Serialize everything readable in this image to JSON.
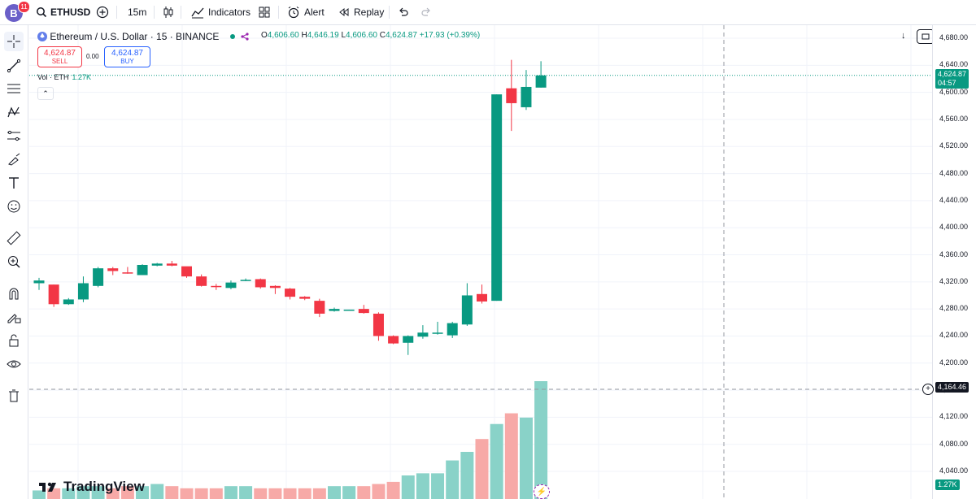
{
  "topbar": {
    "avatar_letter": "B",
    "notification_count": "11",
    "symbol": "ETHUSD",
    "interval": "15m",
    "indicators_label": "Indicators",
    "alert_label": "Alert",
    "replay_label": "Replay"
  },
  "legend": {
    "title": "Ethereum / U.S. Dollar · 15 · BINANCE",
    "open_label": "O",
    "open": "4,606.60",
    "high_label": "H",
    "high": "4,646.19",
    "low_label": "L",
    "low": "4,606.60",
    "close_label": "C",
    "close": "4,624.87",
    "change": "+17.93 (+0.39%)"
  },
  "trade": {
    "sell_price": "4,624.87",
    "sell_label": "SELL",
    "spread": "0.00",
    "buy_price": "4,624.87",
    "buy_label": "BUY"
  },
  "volume_legend": {
    "label": "Vol · ETH",
    "value": "1.27K"
  },
  "price_axis": {
    "ticks": [
      "4,680.00",
      "4,640.00",
      "4,600.00",
      "4,560.00",
      "4,520.00",
      "4,480.00",
      "4,440.00",
      "4,400.00",
      "4,360.00",
      "4,320.00",
      "4,280.00",
      "4,240.00",
      "4,200.00",
      "4,160.00",
      "4,120.00",
      "4,080.00",
      "4,040.00"
    ],
    "last_price_tag": "4,624.87",
    "countdown": "04:57",
    "crosshair_price": "4,164.46",
    "volume_tag": "1.27K"
  },
  "colors": {
    "up": "#089981",
    "down": "#f23645",
    "up_volume": "#89d2c8",
    "down_volume": "#f7a9a7",
    "accent": "#2962ff"
  },
  "logo_text": "TradingView",
  "chart_data": {
    "type": "candlestick",
    "series": [
      {
        "name": "price",
        "candles": [
          {
            "o": 4318,
            "h": 4326,
            "l": 4308,
            "c": 4322
          },
          {
            "o": 4316,
            "h": 4316,
            "l": 4283,
            "c": 4287
          },
          {
            "o": 4287,
            "h": 4296,
            "l": 4286,
            "c": 4294
          },
          {
            "o": 4294,
            "h": 4328,
            "l": 4290,
            "c": 4318
          },
          {
            "o": 4314,
            "h": 4342,
            "l": 4312,
            "c": 4340
          },
          {
            "o": 4340,
            "h": 4342,
            "l": 4330,
            "c": 4336
          },
          {
            "o": 4334,
            "h": 4342,
            "l": 4332,
            "c": 4333
          },
          {
            "o": 4330,
            "h": 4346,
            "l": 4330,
            "c": 4345
          },
          {
            "o": 4344,
            "h": 4348,
            "l": 4343,
            "c": 4347
          },
          {
            "o": 4347,
            "h": 4351,
            "l": 4343,
            "c": 4344
          },
          {
            "o": 4343,
            "h": 4342,
            "l": 4326,
            "c": 4328
          },
          {
            "o": 4328,
            "h": 4331,
            "l": 4313,
            "c": 4314
          },
          {
            "o": 4314,
            "h": 4317,
            "l": 4308,
            "c": 4313
          },
          {
            "o": 4311,
            "h": 4322,
            "l": 4309,
            "c": 4319
          },
          {
            "o": 4323,
            "h": 4325,
            "l": 4321,
            "c": 4323
          },
          {
            "o": 4324,
            "h": 4325,
            "l": 4310,
            "c": 4312
          },
          {
            "o": 4314,
            "h": 4315,
            "l": 4302,
            "c": 4311
          },
          {
            "o": 4310,
            "h": 4311,
            "l": 4294,
            "c": 4298
          },
          {
            "o": 4298,
            "h": 4299,
            "l": 4293,
            "c": 4295
          },
          {
            "o": 4292,
            "h": 4295,
            "l": 4268,
            "c": 4273
          },
          {
            "o": 4277,
            "h": 4282,
            "l": 4276,
            "c": 4280
          },
          {
            "o": 4279,
            "h": 4279,
            "l": 4278,
            "c": 4279
          },
          {
            "o": 4280,
            "h": 4286,
            "l": 4273,
            "c": 4274
          },
          {
            "o": 4273,
            "h": 4275,
            "l": 4233,
            "c": 4240
          },
          {
            "o": 4240,
            "h": 4241,
            "l": 4228,
            "c": 4229
          },
          {
            "o": 4230,
            "h": 4241,
            "l": 4212,
            "c": 4240
          },
          {
            "o": 4239,
            "h": 4256,
            "l": 4236,
            "c": 4245
          },
          {
            "o": 4245,
            "h": 4261,
            "l": 4242,
            "c": 4245
          },
          {
            "o": 4241,
            "h": 4261,
            "l": 4237,
            "c": 4259
          },
          {
            "o": 4257,
            "h": 4318,
            "l": 4255,
            "c": 4300
          },
          {
            "o": 4302,
            "h": 4316,
            "l": 4288,
            "c": 4291
          },
          {
            "o": 4292,
            "h": 4597,
            "l": 4292,
            "c": 4597
          },
          {
            "o": 4606,
            "h": 4648,
            "l": 4543,
            "c": 4584
          },
          {
            "o": 4578,
            "h": 4633,
            "l": 4574,
            "c": 4608
          },
          {
            "o": 4607,
            "h": 4646,
            "l": 4607,
            "c": 4625
          }
        ]
      }
    ],
    "volume": [
      4,
      5,
      5,
      6,
      6,
      5,
      6,
      6,
      7,
      6,
      5,
      5,
      5,
      6,
      6,
      5,
      5,
      5,
      5,
      5,
      6,
      6,
      6,
      7,
      8,
      11,
      12,
      12,
      18,
      22,
      28,
      35,
      40,
      38,
      55
    ],
    "ylim": [
      4030,
      4695
    ]
  }
}
